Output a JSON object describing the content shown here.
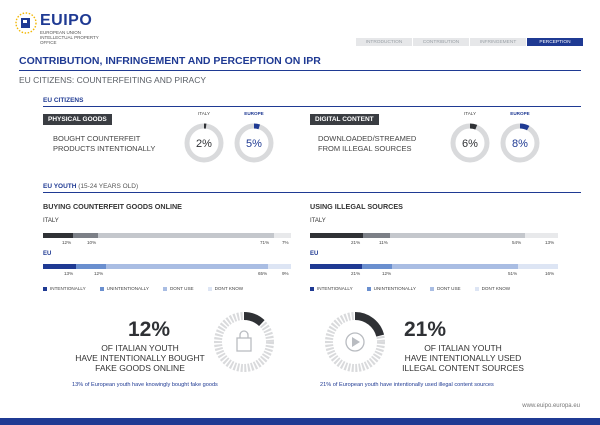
{
  "header": {
    "logo_text": "EUIPO",
    "logo_sub": "European Union Intellectual Property Office",
    "tabs": [
      {
        "label": "INTRODUCTION",
        "active": false
      },
      {
        "label": "CONTRIBUTION",
        "active": false
      },
      {
        "label": "INFRINGEMENT",
        "active": false
      },
      {
        "label": "PERCEPTION",
        "active": true
      }
    ],
    "accent": "#1f3a93"
  },
  "page": {
    "title": "CONTRIBUTION, INFRINGEMENT AND PERCEPTION ON IPR",
    "subtitle": "EU CITIZENS: COUNTERFEITING AND PIRACY"
  },
  "eu_citizens": {
    "label": "EU CITIZENS",
    "physical": {
      "box": "PHYSICAL GOODS",
      "text_line1": "BOUGHT COUNTERFEIT",
      "text_line2": "PRODUCTS INTENTIONALLY",
      "italy_label": "ITALY",
      "europe_label": "EUROPE",
      "italy_value": "2%",
      "europe_value": "5%",
      "italy_fraction": 0.02,
      "europe_fraction": 0.05
    },
    "digital": {
      "box": "DIGITAL CONTENT",
      "text_line1": "DOWNLOADED/STREAMED",
      "text_line2": "FROM ILLEGAL SOURCES",
      "italy_label": "ITALY",
      "europe_label": "EUROPE",
      "italy_value": "6%",
      "europe_value": "8%",
      "italy_fraction": 0.06,
      "europe_fraction": 0.08
    }
  },
  "eu_youth": {
    "label": "EU YOUTH",
    "label_light": "(15-24 YEARS OLD)",
    "goods": {
      "heading": "BUYING COUNTERFEIT GOODS ONLINE",
      "italy_label": "ITALY",
      "eu_label": "EU",
      "italy": {
        "intentionally": 12,
        "unintentionally": 10,
        "dont_use": 71,
        "dont_know": 7,
        "labels": [
          "12%",
          "10%",
          "71%",
          "7%"
        ]
      },
      "eu": {
        "intentionally": 13,
        "unintentionally": 12,
        "dont_use": 65,
        "dont_know": 9,
        "labels": [
          "13%",
          "12%",
          "65%",
          "9%"
        ]
      }
    },
    "sources": {
      "heading": "USING ILLEGAL SOURCES",
      "italy_label": "ITALY",
      "eu_label": "EU",
      "italy": {
        "intentionally": 21,
        "unintentionally": 11,
        "dont_use": 54,
        "dont_know": 13,
        "labels": [
          "21%",
          "11%",
          "54%",
          "13%"
        ]
      },
      "eu": {
        "intentionally": 21,
        "unintentionally": 12,
        "dont_use": 51,
        "dont_know": 16,
        "labels": [
          "21%",
          "12%",
          "51%",
          "16%"
        ]
      }
    },
    "legend": [
      "INTENTIONALLY",
      "UNINTENTIONALLY",
      "DONT USE",
      "DONT KNOW"
    ]
  },
  "highlights": {
    "left": {
      "number": "12%",
      "line1": "OF ITALIAN YOUTH",
      "line2": "HAVE INTENTIONALLY BOUGHT",
      "line3": "FAKE GOODS ONLINE",
      "sub": "13% of European youth have knowingly bought fake goods",
      "fraction": 0.12,
      "icon": "shopping-bag-icon"
    },
    "right": {
      "number": "21%",
      "line1": "OF ITALIAN YOUTH",
      "line2": "HAVE INTENTIONALLY USED",
      "line3": "ILLEGAL CONTENT SOURCES",
      "sub": "21% of European youth have intentionally used illegal content sources",
      "fraction": 0.21,
      "icon": "play-icon"
    }
  },
  "footer": {
    "url": "www.euipo.europa.eu"
  }
}
